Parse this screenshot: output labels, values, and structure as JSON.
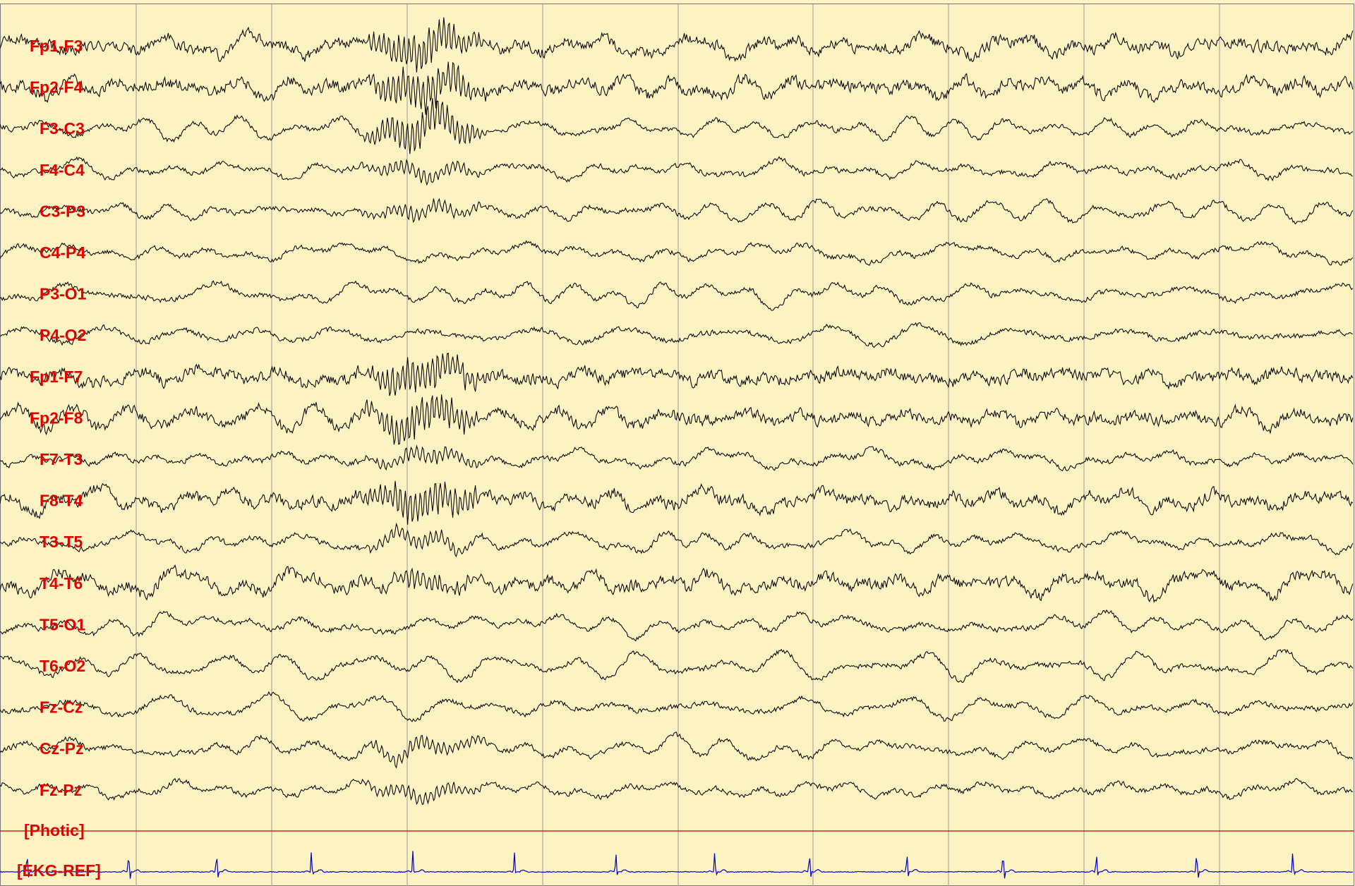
{
  "colors": {
    "background": "#fdf3c2",
    "grid_line": "#a9a9a9",
    "trace": "#000000",
    "label": "#e00000",
    "photic_trace": "#cc0000",
    "ekg_trace": "#0000cc"
  },
  "chart_data": {
    "type": "line",
    "title": "",
    "xlabel": "",
    "ylabel": "",
    "grid": true,
    "x_grid_divisions": 10,
    "xlim": [
      0,
      10
    ],
    "channels": [
      "Fp1-F3",
      "Fp2-F4",
      "F3-C3",
      "F4-C4",
      "C3-P3",
      "C4-P4",
      "P3-O1",
      "P4-O2",
      "Fp1-F7",
      "Fp2-F8",
      "F7-T3",
      "F8-T4",
      "T3-T5",
      "T4-T6",
      "T5-O1",
      "T6-O2",
      "Fz-Cz",
      "Cz-Pz",
      "Fz-Pz"
    ],
    "aux_channels": [
      "[Photic]",
      "[EKG-REF]"
    ],
    "ekg_r_peaks": [
      0.2,
      0.95,
      1.6,
      2.3,
      3.05,
      3.8,
      4.55,
      5.28,
      5.98,
      6.7,
      7.41,
      8.1,
      8.84,
      9.55
    ],
    "burst": {
      "start": 2.6,
      "end": 3.65,
      "strong_channels": [
        "Fp1-F3",
        "Fp2-F4",
        "F3-C3",
        "Fp1-F7",
        "Fp2-F8",
        "F8-T4"
      ],
      "moderate_channels": [
        "F4-C4",
        "C3-P3",
        "F7-T3",
        "T3-T5",
        "T4-T6",
        "Cz-Pz",
        "Fz-Pz"
      ]
    }
  }
}
